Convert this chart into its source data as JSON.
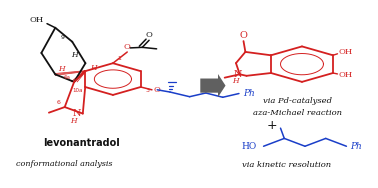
{
  "bg_color": "#ffffff",
  "red_color": "#d42020",
  "blue_color": "#1a3ec8",
  "black_color": "#111111",
  "gray_color": "#606060",
  "label_levonantradol": "levonantradol",
  "label_conformational": "conformational analysis",
  "label_via_pd": "via Pd-catalysed",
  "label_aza": "aza-Michael reaction",
  "label_plus": "+",
  "label_via_kinetic": "via kinetic resolution",
  "figsize": [
    3.78,
    1.88
  ],
  "dpi": 100
}
